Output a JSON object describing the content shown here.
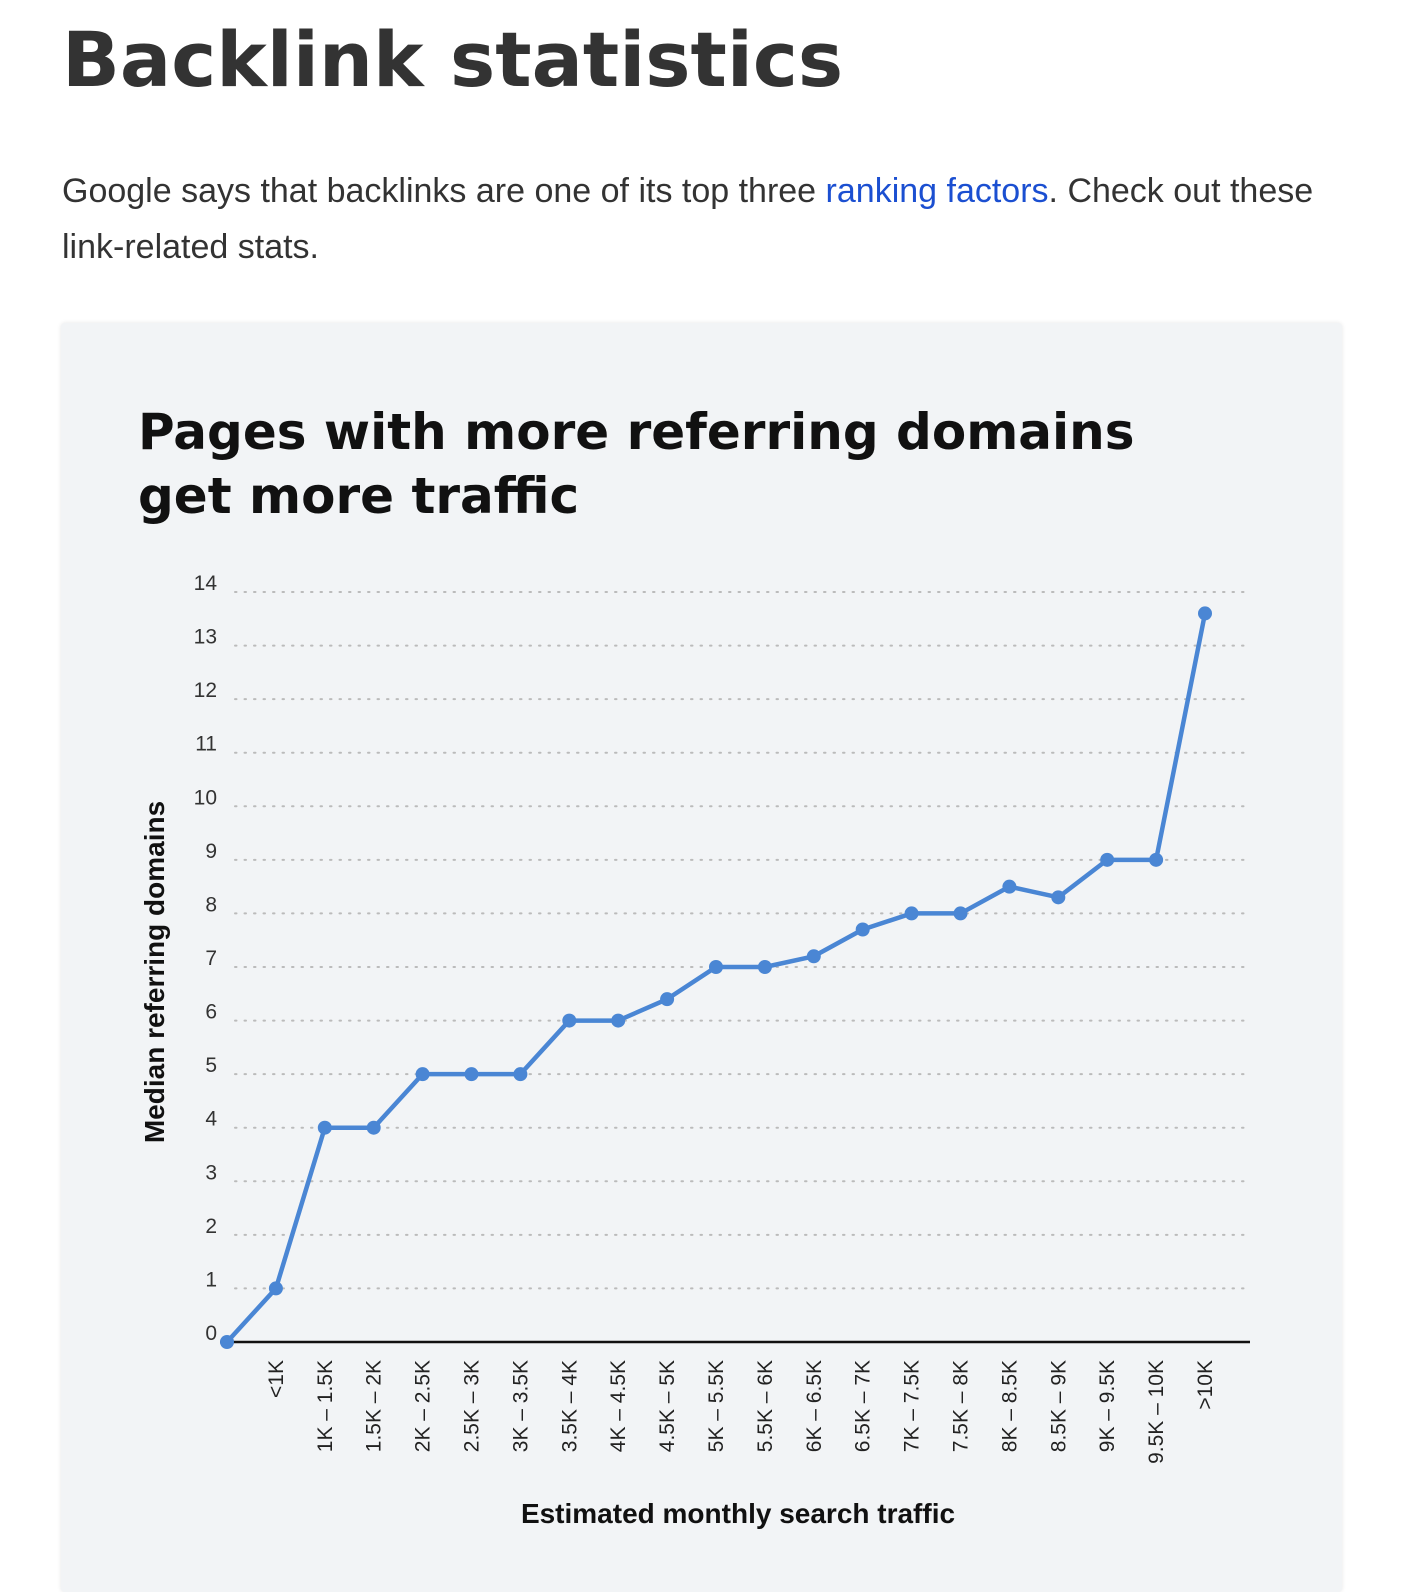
{
  "article": {
    "heading": "Backlink statistics",
    "intro_before_link": "Google says that backlinks are one of its top three ",
    "intro_link_text": "ranking factors",
    "intro_after_link": ". Check out these link-related stats."
  },
  "colors": {
    "text": "#333333",
    "link": "#1b4fd1",
    "card_background": "#f2f4f6",
    "series_line": "#4a86d4",
    "axis": "#111111",
    "grid": "#bbbbbb"
  },
  "chart_data": {
    "type": "line",
    "title": "Pages with more referring domains\nget more traffic",
    "xlabel": "Estimated monthly search traffic",
    "ylabel": "Median referring domains",
    "ylim": [
      0,
      14
    ],
    "yticks": [
      0,
      1,
      2,
      3,
      4,
      5,
      6,
      7,
      8,
      9,
      10,
      11,
      12,
      13,
      14
    ],
    "grid": "horizontal dotted",
    "legend": "none",
    "x_tick_rotation": "vertical",
    "categories": [
      "",
      "<1K",
      "1K – 1.5K",
      "1.5K – 2K",
      "2K – 2.5K",
      "2.5K – 3K",
      "3K – 3.5K",
      "3.5K – 4K",
      "4K – 4.5K",
      "4.5K – 5K",
      "5K – 5.5K",
      "5.5K – 6K",
      "6K – 6.5K",
      "6.5K – 7K",
      "7K – 7.5K",
      "7.5K – 8K",
      "8K – 8.5K",
      "8.5K – 9K",
      "9K – 9.5K",
      "9.5K – 10K",
      ">10K"
    ],
    "values": [
      0,
      1,
      4,
      4,
      5,
      5,
      5,
      6,
      6,
      6.4,
      7,
      7,
      7.2,
      7.7,
      8,
      8,
      8.5,
      8.3,
      9,
      9,
      13.6
    ]
  }
}
